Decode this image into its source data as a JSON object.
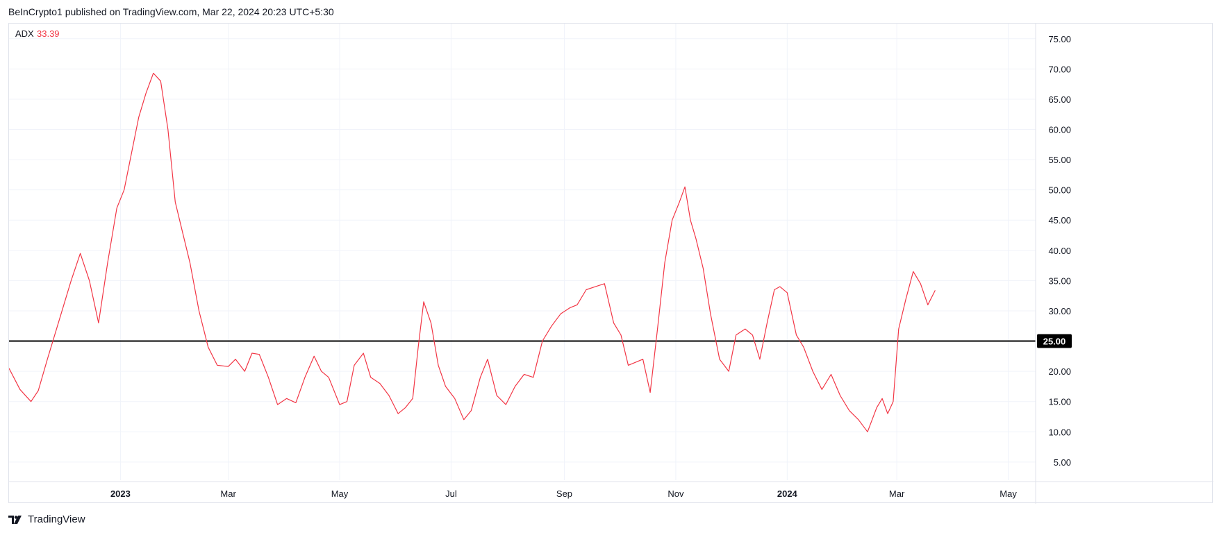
{
  "header": {
    "text": "BeInCrypto1 published on TradingView.com, Mar 22, 2024 20:23 UTC+5:30"
  },
  "footer": {
    "brand": "TradingView"
  },
  "legend": {
    "name": "ADX",
    "value": "33.39"
  },
  "colors": {
    "series": "#f23645",
    "ref_line": "#000000",
    "grid": "#f0f3fa",
    "text": "#131722",
    "marker_bg": "#000000"
  },
  "chart_data": {
    "type": "line",
    "title": "",
    "xlabel": "",
    "ylabel": "",
    "ylim": [
      2.0,
      77.5
    ],
    "yticks": [
      "75.00",
      "70.00",
      "65.00",
      "60.00",
      "55.00",
      "50.00",
      "45.00",
      "40.00",
      "35.00",
      "30.00",
      "25.00",
      "20.00",
      "15.00",
      "10.00",
      "5.00"
    ],
    "xticks": [
      {
        "label": "2023",
        "date": "2023-01-01",
        "bold": true
      },
      {
        "label": "Mar",
        "date": "2023-03-01",
        "bold": false
      },
      {
        "label": "May",
        "date": "2023-05-01",
        "bold": false
      },
      {
        "label": "Jul",
        "date": "2023-07-01",
        "bold": false
      },
      {
        "label": "Sep",
        "date": "2023-09-01",
        "bold": false
      },
      {
        "label": "Nov",
        "date": "2023-11-01",
        "bold": false
      },
      {
        "label": "2024",
        "date": "2024-01-01",
        "bold": true
      },
      {
        "label": "Mar",
        "date": "2024-03-01",
        "bold": false
      },
      {
        "label": "May",
        "date": "2024-05-01",
        "bold": false
      }
    ],
    "grid": true,
    "reference_line": {
      "value": 25.0,
      "label": "25.00"
    },
    "x_domain": [
      "2022-11-01",
      "2024-05-16"
    ],
    "series": [
      {
        "name": "ADX",
        "dates": [
          "2022-11-01",
          "2022-11-07",
          "2022-11-13",
          "2022-11-17",
          "2022-11-22",
          "2022-11-28",
          "2022-12-05",
          "2022-12-10",
          "2022-12-15",
          "2022-12-20",
          "2022-12-25",
          "2022-12-30",
          "2023-01-03",
          "2023-01-07",
          "2023-01-11",
          "2023-01-15",
          "2023-01-19",
          "2023-01-23",
          "2023-01-27",
          "2023-01-31",
          "2023-02-04",
          "2023-02-08",
          "2023-02-13",
          "2023-02-18",
          "2023-02-23",
          "2023-03-01",
          "2023-03-05",
          "2023-03-10",
          "2023-03-14",
          "2023-03-18",
          "2023-03-23",
          "2023-03-28",
          "2023-04-02",
          "2023-04-07",
          "2023-04-12",
          "2023-04-17",
          "2023-04-21",
          "2023-04-25",
          "2023-05-01",
          "2023-05-05",
          "2023-05-09",
          "2023-05-14",
          "2023-05-18",
          "2023-05-23",
          "2023-05-28",
          "2023-06-02",
          "2023-06-06",
          "2023-06-10",
          "2023-06-13",
          "2023-06-16",
          "2023-06-20",
          "2023-06-24",
          "2023-06-28",
          "2023-07-03",
          "2023-07-08",
          "2023-07-12",
          "2023-07-17",
          "2023-07-21",
          "2023-07-26",
          "2023-07-31",
          "2023-08-05",
          "2023-08-10",
          "2023-08-15",
          "2023-08-20",
          "2023-08-25",
          "2023-08-30",
          "2023-09-04",
          "2023-09-08",
          "2023-09-13",
          "2023-09-18",
          "2023-09-23",
          "2023-09-28",
          "2023-10-02",
          "2023-10-06",
          "2023-10-10",
          "2023-10-14",
          "2023-10-18",
          "2023-10-22",
          "2023-10-26",
          "2023-10-30",
          "2023-11-03",
          "2023-11-06",
          "2023-11-09",
          "2023-11-12",
          "2023-11-16",
          "2023-11-20",
          "2023-11-25",
          "2023-11-30",
          "2023-12-04",
          "2023-12-09",
          "2023-12-13",
          "2023-12-17",
          "2023-12-21",
          "2023-12-25",
          "2023-12-28",
          "2024-01-01",
          "2024-01-06",
          "2024-01-10",
          "2024-01-15",
          "2024-01-20",
          "2024-01-25",
          "2024-01-30",
          "2024-02-04",
          "2024-02-09",
          "2024-02-14",
          "2024-02-19",
          "2024-02-22",
          "2024-02-25",
          "2024-02-28",
          "2024-03-02",
          "2024-03-06",
          "2024-03-10",
          "2024-03-14",
          "2024-03-18",
          "2024-03-22"
        ],
        "values": [
          20.5,
          17.0,
          15.0,
          16.8,
          22.0,
          28.0,
          35.0,
          39.5,
          35.0,
          28.0,
          38.0,
          47.0,
          50.0,
          56.0,
          62.0,
          66.0,
          69.3,
          68.0,
          60.0,
          48.0,
          43.0,
          38.0,
          30.0,
          24.0,
          21.0,
          20.8,
          22.0,
          20.0,
          23.0,
          22.8,
          19.0,
          14.5,
          15.5,
          14.8,
          19.0,
          22.5,
          20.0,
          19.0,
          14.5,
          15.0,
          21.0,
          23.0,
          19.0,
          18.0,
          16.0,
          13.0,
          14.0,
          15.5,
          24.0,
          31.5,
          28.0,
          21.0,
          17.5,
          15.5,
          12.0,
          13.5,
          19.0,
          22.0,
          16.0,
          14.5,
          17.5,
          19.5,
          19.0,
          25.0,
          27.5,
          29.5,
          30.5,
          31.0,
          33.5,
          34.0,
          34.5,
          28.0,
          26.0,
          21.0,
          21.5,
          22.0,
          16.5,
          27.0,
          38.0,
          45.0,
          48.0,
          50.5,
          45.0,
          42.0,
          37.0,
          29.5,
          22.0,
          20.0,
          26.0,
          27.0,
          26.0,
          22.0,
          28.0,
          33.5,
          34.0,
          33.0,
          26.0,
          24.0,
          20.0,
          17.0,
          19.5,
          16.0,
          13.5,
          12.0,
          10.0,
          14.0,
          15.5,
          13.0,
          15.0,
          27.0,
          32.0,
          36.5,
          34.5,
          31.0,
          33.39
        ]
      }
    ]
  }
}
